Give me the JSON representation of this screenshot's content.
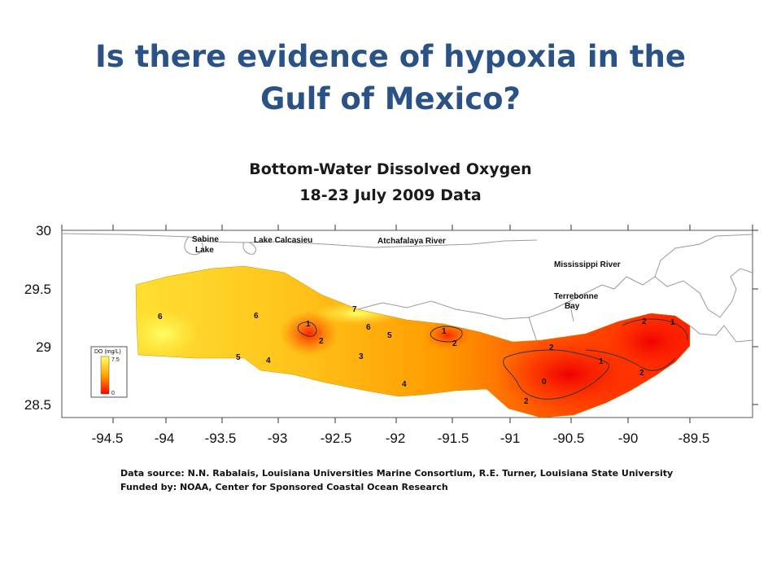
{
  "slide": {
    "title_line1": "Is there evidence of hypoxia in the",
    "title_line2": "Gulf of Mexico?"
  },
  "map": {
    "heading_line1": "Bottom-Water Dissolved Oxygen",
    "heading_line2": "18-23 July 2009 Data",
    "lon_ticks": [
      "-94.5",
      "-94",
      "-93.5",
      "-93",
      "-92.5",
      "-92",
      "-91.5",
      "-91",
      "-90.5",
      "-90",
      "-89.5"
    ],
    "lat_ticks": [
      "30",
      "29.5",
      "29",
      "28.5"
    ],
    "places": {
      "sabine_line1": "Sabine",
      "sabine_line2": "Lake",
      "calcasieu": "Lake Calcasieu",
      "atchafalaya": "Atchafalaya River",
      "mississippi": "Mississippi River",
      "terrebonne_line1": "Terrebonne",
      "terrebonne_line2": "Bay"
    },
    "contour_labels": [
      "6",
      "6",
      "5",
      "4",
      "7",
      "1",
      "2",
      "6",
      "5",
      "3",
      "4",
      "1",
      "2",
      "2",
      "0",
      "2",
      "1",
      "2",
      "2",
      "1"
    ],
    "legend": {
      "title": "DO (mg/L)",
      "max_label": "7.5",
      "min_label": "0",
      "colors": {
        "high": "#ffff66",
        "mid": "#ffa500",
        "low": "#ff0000"
      }
    }
  },
  "credits": {
    "source": "Data source: N.N. Rabalais, Louisiana Universities Marine Consortium, R.E. Turner, Louisiana State University",
    "funding": "Funded by: NOAA, Center for Sponsored Coastal Ocean Research"
  }
}
